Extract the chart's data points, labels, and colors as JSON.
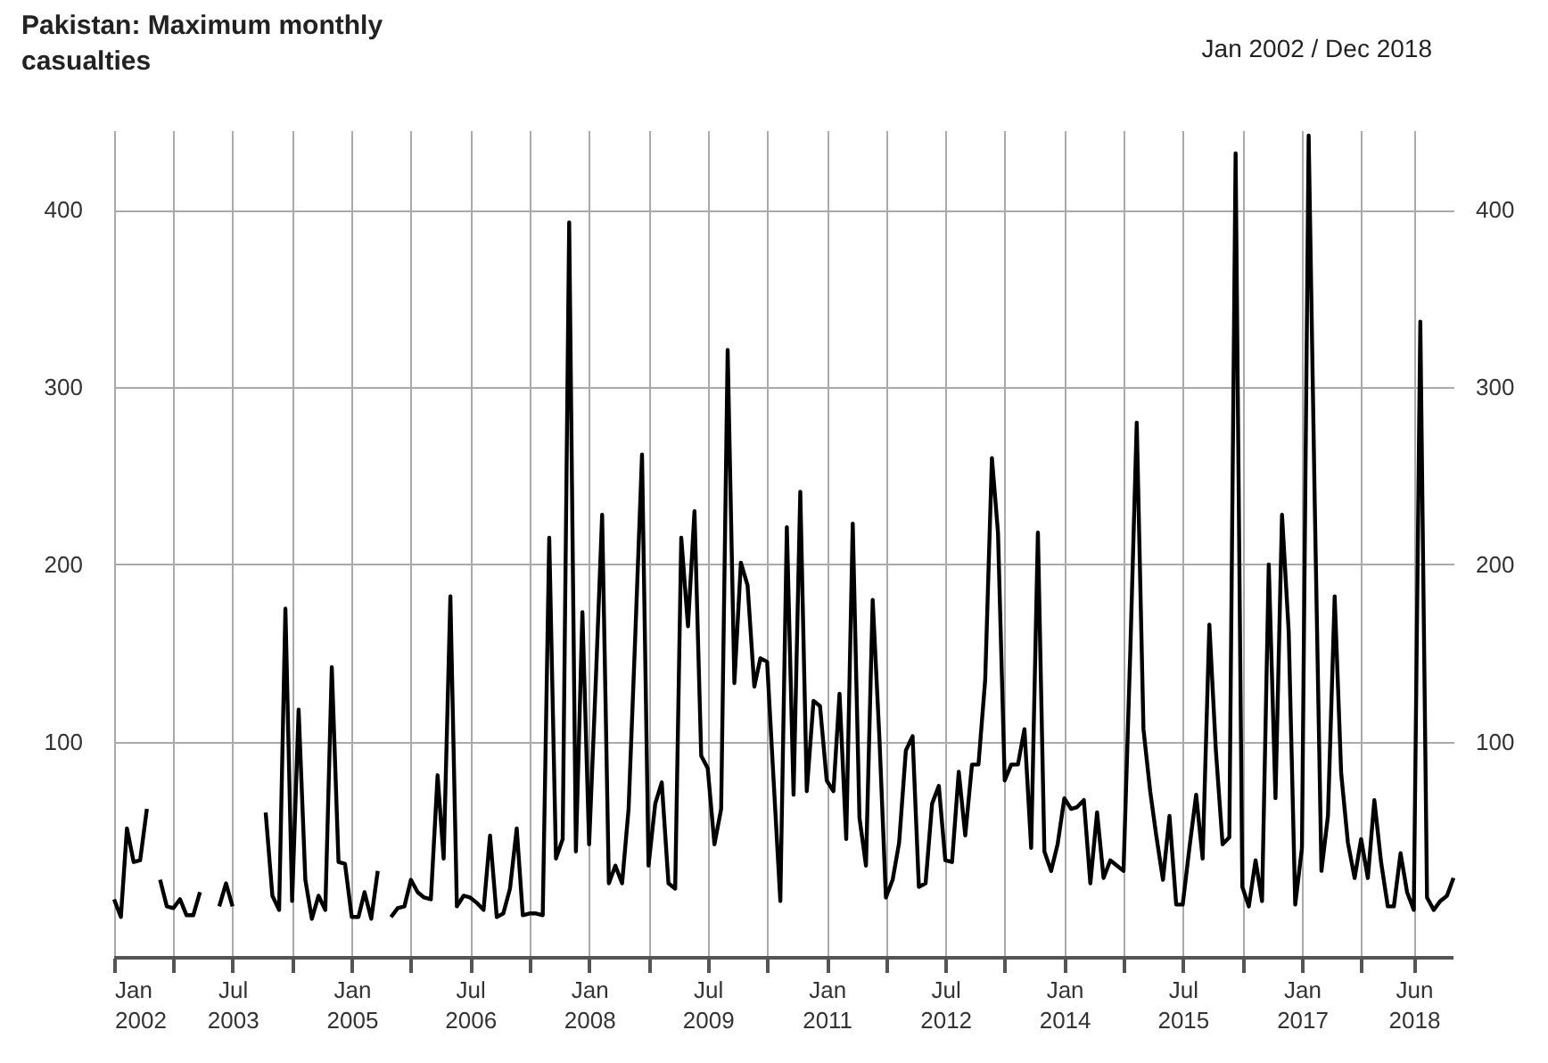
{
  "chart_data": {
    "type": "line",
    "title": "Pakistan: Maximum monthly casualties",
    "subtitle": "Jan 2002 / Dec 2018",
    "series": [
      {
        "color": "#000000",
        "x": [
          "2002-01",
          "2002-02",
          "2002-03",
          "2002-04",
          "2002-05",
          "2002-06",
          "2002-07",
          "2002-08",
          "2002-09",
          "2002-10",
          "2002-11",
          "2002-12",
          "2003-01",
          "2003-02",
          "2003-03",
          "2003-04",
          "2003-05",
          "2003-06",
          "2003-07",
          "2003-08",
          "2003-09",
          "2003-10",
          "2003-11",
          "2003-12",
          "2004-01",
          "2004-02",
          "2004-03",
          "2004-04",
          "2004-05",
          "2004-06",
          "2004-07",
          "2004-08",
          "2004-09",
          "2004-10",
          "2004-11",
          "2004-12",
          "2005-01",
          "2005-02",
          "2005-03",
          "2005-04",
          "2005-05",
          "2005-06",
          "2005-07",
          "2005-08",
          "2005-09",
          "2005-10",
          "2005-11",
          "2005-12",
          "2006-01",
          "2006-02",
          "2006-03",
          "2006-04",
          "2006-05",
          "2006-06",
          "2006-07",
          "2006-08",
          "2006-09",
          "2006-10",
          "2006-11",
          "2006-12",
          "2007-01",
          "2007-02",
          "2007-03",
          "2007-04",
          "2007-05",
          "2007-06",
          "2007-07",
          "2007-08",
          "2007-09",
          "2007-10",
          "2007-11",
          "2007-12",
          "2008-01",
          "2008-02",
          "2008-03",
          "2008-04",
          "2008-05",
          "2008-06",
          "2008-07",
          "2008-08",
          "2008-09",
          "2008-10",
          "2008-11",
          "2008-12",
          "2009-01",
          "2009-02",
          "2009-03",
          "2009-04",
          "2009-05",
          "2009-06",
          "2009-07",
          "2009-08",
          "2009-09",
          "2009-10",
          "2009-11",
          "2009-12",
          "2010-01",
          "2010-02",
          "2010-03",
          "2010-04",
          "2010-05",
          "2010-06",
          "2010-07",
          "2010-08",
          "2010-09",
          "2010-10",
          "2010-11",
          "2010-12",
          "2011-01",
          "2011-02",
          "2011-03",
          "2011-04",
          "2011-05",
          "2011-06",
          "2011-07",
          "2011-08",
          "2011-09",
          "2011-10",
          "2011-11",
          "2011-12",
          "2012-01",
          "2012-02",
          "2012-03",
          "2012-04",
          "2012-05",
          "2012-06",
          "2012-07",
          "2012-08",
          "2012-09",
          "2012-10",
          "2012-11",
          "2012-12",
          "2013-01",
          "2013-02",
          "2013-03",
          "2013-04",
          "2013-05",
          "2013-06",
          "2013-07",
          "2013-08",
          "2013-09",
          "2013-10",
          "2013-11",
          "2013-12",
          "2014-01",
          "2014-02",
          "2014-03",
          "2014-04",
          "2014-05",
          "2014-06",
          "2014-07",
          "2014-08",
          "2014-09",
          "2014-10",
          "2014-11",
          "2014-12",
          "2015-01",
          "2015-02",
          "2015-03",
          "2015-04",
          "2015-05",
          "2015-06",
          "2015-07",
          "2015-08",
          "2015-09",
          "2015-10",
          "2015-11",
          "2015-12",
          "2016-01",
          "2016-02",
          "2016-03",
          "2016-04",
          "2016-05",
          "2016-06",
          "2016-07",
          "2016-08",
          "2016-09",
          "2016-10",
          "2016-11",
          "2016-12",
          "2017-01",
          "2017-02",
          "2017-03",
          "2017-04",
          "2017-05",
          "2017-06",
          "2017-07",
          "2017-08",
          "2017-09",
          "2017-10",
          "2017-11",
          "2017-12",
          "2018-01",
          "2018-02",
          "2018-03",
          "2018-04",
          "2018-05",
          "2018-06",
          "2018-07",
          "2018-08",
          "2018-09",
          "2018-10",
          "2018-11",
          "2018-12"
        ],
        "values": [
          11,
          1,
          51,
          32,
          33,
          62,
          null,
          22,
          7,
          6,
          11,
          2,
          2,
          15,
          null,
          null,
          7,
          20,
          7,
          null,
          null,
          null,
          null,
          60,
          13,
          5,
          175,
          10,
          118,
          22,
          0,
          13,
          5,
          142,
          32,
          31,
          1,
          1,
          15,
          0,
          27,
          null,
          1,
          6,
          7,
          22,
          15,
          12,
          11,
          81,
          34,
          182,
          7,
          13,
          12,
          9,
          5,
          47,
          1,
          3,
          17,
          51,
          2,
          3,
          3,
          2,
          215,
          34,
          45,
          393,
          38,
          173,
          42,
          135,
          228,
          20,
          30,
          20,
          62,
          160,
          262,
          30,
          65,
          77,
          20,
          17,
          215,
          165,
          230,
          92,
          85,
          42,
          62,
          321,
          133,
          201,
          188,
          131,
          147,
          145,
          78,
          10,
          221,
          70,
          241,
          72,
          123,
          120,
          78,
          72,
          127,
          45,
          223,
          57,
          30,
          180,
          102,
          12,
          22,
          43,
          95,
          103,
          18,
          20,
          65,
          75,
          33,
          32,
          83,
          47,
          87,
          87,
          135,
          260,
          218,
          78,
          87,
          87,
          107,
          40,
          218,
          38,
          27,
          42,
          68,
          62,
          63,
          67,
          20,
          60,
          23,
          33,
          30,
          27,
          150,
          280,
          107,
          72,
          47,
          22,
          58,
          8,
          8,
          40,
          70,
          34,
          166,
          95,
          42,
          46,
          432,
          18,
          7,
          33,
          10,
          200,
          68,
          228,
          162,
          8,
          40,
          442,
          235,
          27,
          58,
          182,
          82,
          43,
          23,
          45,
          23,
          67,
          32,
          7,
          7,
          37,
          15,
          5,
          337,
          12,
          5,
          10,
          13,
          23
        ]
      }
    ],
    "xlim": [
      "2002-01",
      "2018-12"
    ],
    "xticks": [
      {
        "value": "2002-01",
        "label": "Jan 2002"
      },
      {
        "value": "2002-10",
        "label": null
      },
      {
        "value": "2003-07",
        "label": "Jul 2003"
      },
      {
        "value": "2004-04",
        "label": null
      },
      {
        "value": "2005-01",
        "label": "Jan 2005"
      },
      {
        "value": "2005-10",
        "label": null
      },
      {
        "value": "2006-07",
        "label": "Jul 2006"
      },
      {
        "value": "2007-04",
        "label": null
      },
      {
        "value": "2008-01",
        "label": "Jan 2008"
      },
      {
        "value": "2008-10",
        "label": null
      },
      {
        "value": "2009-07",
        "label": "Jul 2009"
      },
      {
        "value": "2010-04",
        "label": null
      },
      {
        "value": "2011-01",
        "label": "Jan 2011"
      },
      {
        "value": "2011-10",
        "label": null
      },
      {
        "value": "2012-07",
        "label": "Jul 2012"
      },
      {
        "value": "2013-04",
        "label": null
      },
      {
        "value": "2014-01",
        "label": "Jan 2014"
      },
      {
        "value": "2014-10",
        "label": null
      },
      {
        "value": "2015-07",
        "label": "Jul 2015"
      },
      {
        "value": "2016-04",
        "label": null
      },
      {
        "value": "2017-01",
        "label": "Jan 2017"
      },
      {
        "value": "2017-10",
        "label": null
      },
      {
        "value": "2018-06",
        "label": "Jun 2018"
      }
    ],
    "ylim": [
      -22,
      445
    ],
    "yticks": [
      100,
      200,
      300,
      400
    ],
    "y2lim": [
      -22,
      445
    ],
    "y2ticks": [
      100,
      200,
      300,
      400
    ],
    "grid": true,
    "line_style": "solid"
  }
}
